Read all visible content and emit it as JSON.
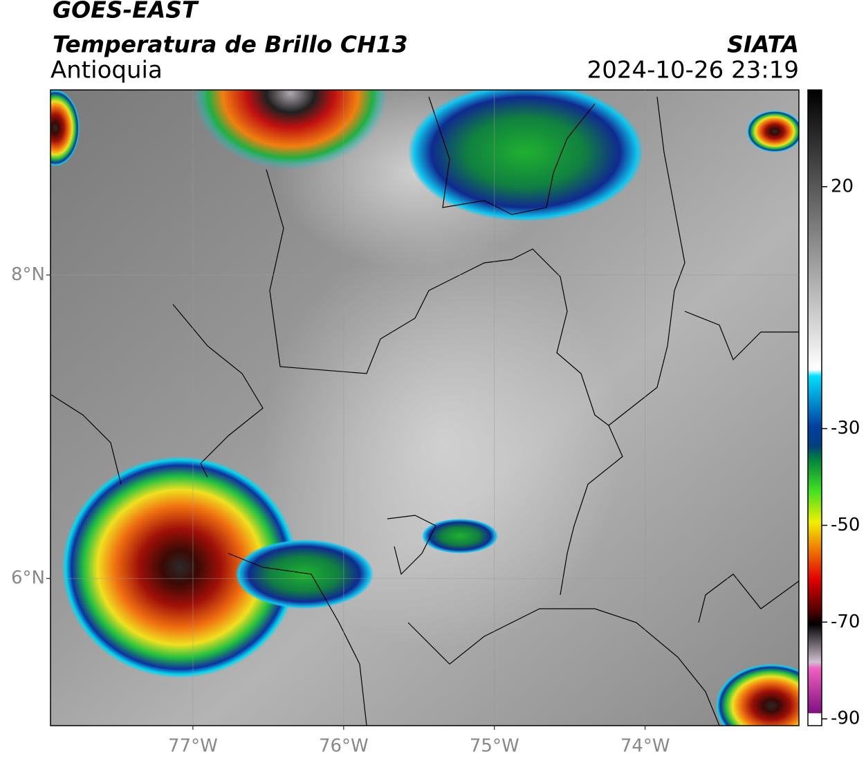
{
  "header": {
    "title": "GOES-EAST",
    "subtitle": "Temperatura de Brillo CH13",
    "region": "Antioquia",
    "source": "SIATA",
    "datetime": "2024-10-26 23:19"
  },
  "map": {
    "xlim": [
      -77.945,
      -72.98
    ],
    "ylim": [
      5.03,
      9.22
    ],
    "xticks": [
      {
        "value": -77,
        "label": "77°W"
      },
      {
        "value": -76,
        "label": "76°W"
      },
      {
        "value": -75,
        "label": "75°W"
      },
      {
        "value": -74,
        "label": "74°W"
      }
    ],
    "yticks": [
      {
        "value": 8,
        "label": "8°N"
      },
      {
        "value": 6,
        "label": "6°N"
      }
    ]
  },
  "colorbar": {
    "lim": [
      -91.4,
      40
    ],
    "ticks": [
      20,
      -30,
      -50,
      -70,
      -90
    ]
  }
}
